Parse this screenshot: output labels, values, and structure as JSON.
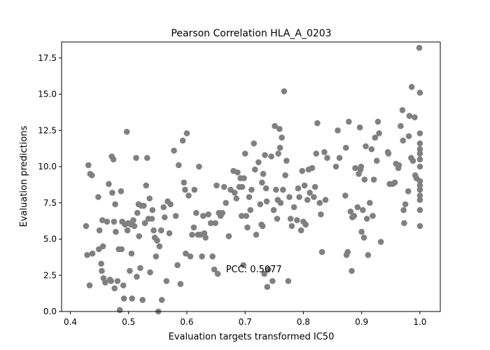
{
  "chart_data": {
    "type": "scatter",
    "title": "Pearson Correlation HLA_A_0203",
    "xlabel": "Evaluation targets transformed IC50",
    "ylabel": "Evaluation predictions",
    "xlim": [
      0.385,
      1.035
    ],
    "ylim": [
      0,
      18.6
    ],
    "xticks": [
      "0.4",
      "0.5",
      "0.6",
      "0.7",
      "0.8",
      "0.9",
      "1.0"
    ],
    "yticks": [
      "0.0",
      "2.5",
      "5.0",
      "7.5",
      "10.0",
      "12.5",
      "15.0",
      "17.5"
    ],
    "grid": false,
    "marker_color": "#808080",
    "annotation": {
      "text": "PCC: 0.5077",
      "x": 0.667,
      "y": 2.7
    },
    "points": [
      [
        0.427,
        5.9
      ],
      [
        0.429,
        3.9
      ],
      [
        0.431,
        10.1
      ],
      [
        0.433,
        1.8
      ],
      [
        0.434,
        9.5
      ],
      [
        0.437,
        9.4
      ],
      [
        0.438,
        4.0
      ],
      [
        0.448,
        7.9
      ],
      [
        0.449,
        4.3
      ],
      [
        0.45,
        5.6
      ],
      [
        0.453,
        3.3
      ],
      [
        0.454,
        2.8
      ],
      [
        0.455,
        6.3
      ],
      [
        0.456,
        4.5
      ],
      [
        0.457,
        2.3
      ],
      [
        0.46,
        2.0
      ],
      [
        0.463,
        6.2
      ],
      [
        0.466,
        8.8
      ],
      [
        0.468,
        2.2
      ],
      [
        0.47,
        2.1
      ],
      [
        0.471,
        10.7
      ],
      [
        0.472,
        8.2
      ],
      [
        0.474,
        10.5
      ],
      [
        0.475,
        6.2
      ],
      [
        0.476,
        1.6
      ],
      [
        0.477,
        7.4
      ],
      [
        0.478,
        5.5
      ],
      [
        0.481,
        2.1
      ],
      [
        0.483,
        4.3
      ],
      [
        0.485,
        0.1
      ],
      [
        0.487,
        8.3
      ],
      [
        0.488,
        4.3
      ],
      [
        0.489,
        6.2
      ],
      [
        0.491,
        1.8
      ],
      [
        0.492,
        0.9
      ],
      [
        0.494,
        6.0
      ],
      [
        0.497,
        12.4
      ],
      [
        0.498,
        5.6
      ],
      [
        0.499,
        6.1
      ],
      [
        0.502,
        2.8
      ],
      [
        0.504,
        6.0
      ],
      [
        0.505,
        4.0
      ],
      [
        0.506,
        0.9
      ],
      [
        0.508,
        6.3
      ],
      [
        0.51,
        5.9
      ],
      [
        0.513,
        10.6
      ],
      [
        0.514,
        2.4
      ],
      [
        0.515,
        6.8
      ],
      [
        0.517,
        7.4
      ],
      [
        0.518,
        5.2
      ],
      [
        0.52,
        3.0
      ],
      [
        0.522,
        7.3
      ],
      [
        0.524,
        0.8
      ],
      [
        0.526,
        7.3
      ],
      [
        0.528,
        6.1
      ],
      [
        0.53,
        8.7
      ],
      [
        0.532,
        10.6
      ],
      [
        0.534,
        6.4
      ],
      [
        0.536,
        7.8
      ],
      [
        0.537,
        2.7
      ],
      [
        0.54,
        6.4
      ],
      [
        0.541,
        7.0
      ],
      [
        0.543,
        5.6
      ],
      [
        0.545,
        5.1
      ],
      [
        0.547,
        3.8
      ],
      [
        0.549,
        4.9
      ],
      [
        0.551,
        0.0
      ],
      [
        0.553,
        4.5
      ],
      [
        0.556,
        5.6
      ],
      [
        0.557,
        0.8
      ],
      [
        0.56,
        7.2
      ],
      [
        0.562,
        6.5
      ],
      [
        0.565,
        2.1
      ],
      [
        0.567,
        7.6
      ],
      [
        0.57,
        5.4
      ],
      [
        0.572,
        7.4
      ],
      [
        0.578,
        11.1
      ],
      [
        0.581,
        6.6
      ],
      [
        0.584,
        3.2
      ],
      [
        0.586,
        10.1
      ],
      [
        0.589,
        1.9
      ],
      [
        0.593,
        11.8
      ],
      [
        0.595,
        8.9
      ],
      [
        0.597,
        8.4
      ],
      [
        0.598,
        4.0
      ],
      [
        0.6,
        12.3
      ],
      [
        0.603,
        8.0
      ],
      [
        0.606,
        3.8
      ],
      [
        0.609,
        5.3
      ],
      [
        0.612,
        5.8
      ],
      [
        0.613,
        8.4
      ],
      [
        0.616,
        6.8
      ],
      [
        0.619,
        5.3
      ],
      [
        0.621,
        10.0
      ],
      [
        0.623,
        5.3
      ],
      [
        0.626,
        3.8
      ],
      [
        0.628,
        6.6
      ],
      [
        0.63,
        5.4
      ],
      [
        0.632,
        5.1
      ],
      [
        0.637,
        6.7
      ],
      [
        0.641,
        6.1
      ],
      [
        0.644,
        3.8
      ],
      [
        0.647,
        2.9
      ],
      [
        0.649,
        6.1
      ],
      [
        0.651,
        8.7
      ],
      [
        0.653,
        2.6
      ],
      [
        0.655,
        6.8
      ],
      [
        0.658,
        6.6
      ],
      [
        0.661,
        6.8
      ],
      [
        0.664,
        8.6
      ],
      [
        0.667,
        7.5
      ],
      [
        0.672,
        5.2
      ],
      [
        0.675,
        8.4
      ],
      [
        0.68,
        9.7
      ],
      [
        0.682,
        8.2
      ],
      [
        0.685,
        7.8
      ],
      [
        0.687,
        9.6
      ],
      [
        0.69,
        8.6
      ],
      [
        0.692,
        9.2
      ],
      [
        0.694,
        6.6
      ],
      [
        0.695,
        8.6
      ],
      [
        0.697,
        3.2
      ],
      [
        0.698,
        9.2
      ],
      [
        0.7,
        10.9
      ],
      [
        0.702,
        6.6
      ],
      [
        0.704,
        5.8
      ],
      [
        0.707,
        7.9
      ],
      [
        0.709,
        7.0
      ],
      [
        0.711,
        8.4
      ],
      [
        0.715,
        11.6
      ],
      [
        0.717,
        9.8
      ],
      [
        0.719,
        5.3
      ],
      [
        0.723,
        10.3
      ],
      [
        0.726,
        7.4
      ],
      [
        0.728,
        6.0
      ],
      [
        0.729,
        8.9
      ],
      [
        0.73,
        5.9
      ],
      [
        0.731,
        9.5
      ],
      [
        0.733,
        2.6
      ],
      [
        0.734,
        10.8
      ],
      [
        0.736,
        8.5
      ],
      [
        0.737,
        7.6
      ],
      [
        0.738,
        1.7
      ],
      [
        0.74,
        2.9
      ],
      [
        0.745,
        10.7
      ],
      [
        0.747,
        2.1
      ],
      [
        0.749,
        7.0
      ],
      [
        0.751,
        12.8
      ],
      [
        0.753,
        8.4
      ],
      [
        0.755,
        6.4
      ],
      [
        0.756,
        7.7
      ],
      [
        0.757,
        10.9
      ],
      [
        0.759,
        12.6
      ],
      [
        0.76,
        11.3
      ],
      [
        0.761,
        7.5
      ],
      [
        0.763,
        12.0
      ],
      [
        0.765,
        8.4
      ],
      [
        0.767,
        15.2
      ],
      [
        0.769,
        9.4
      ],
      [
        0.771,
        10.4
      ],
      [
        0.774,
        2.1
      ],
      [
        0.776,
        7.9
      ],
      [
        0.778,
        6.4
      ],
      [
        0.78,
        5.9
      ],
      [
        0.784,
        7.2
      ],
      [
        0.789,
        6.3
      ],
      [
        0.791,
        8.5
      ],
      [
        0.793,
        7.9
      ],
      [
        0.796,
        5.6
      ],
      [
        0.798,
        9.7
      ],
      [
        0.8,
        6.2
      ],
      [
        0.802,
        8.7
      ],
      [
        0.804,
        6.0
      ],
      [
        0.807,
        7.7
      ],
      [
        0.809,
        9.8
      ],
      [
        0.811,
        8.2
      ],
      [
        0.815,
        9.9
      ],
      [
        0.818,
        7.9
      ],
      [
        0.82,
        8.6
      ],
      [
        0.822,
        10.9
      ],
      [
        0.824,
        13.0
      ],
      [
        0.828,
        7.5
      ],
      [
        0.83,
        6.7
      ],
      [
        0.832,
        4.1
      ],
      [
        0.836,
        11.0
      ],
      [
        0.838,
        7.7
      ],
      [
        0.841,
        10.6
      ],
      [
        0.856,
        10.0
      ],
      [
        0.859,
        12.5
      ],
      [
        0.862,
        10.6
      ],
      [
        0.872,
        8.0
      ],
      [
        0.873,
        11.3
      ],
      [
        0.874,
        3.9
      ],
      [
        0.876,
        4.1
      ],
      [
        0.878,
        13.1
      ],
      [
        0.881,
        6.9
      ],
      [
        0.883,
        2.8
      ],
      [
        0.884,
        6.5
      ],
      [
        0.887,
        6.6
      ],
      [
        0.889,
        9.9
      ],
      [
        0.893,
        7.2
      ],
      [
        0.895,
        9.5
      ],
      [
        0.897,
        12.7
      ],
      [
        0.898,
        9.8
      ],
      [
        0.899,
        10.0
      ],
      [
        0.9,
        5.5
      ],
      [
        0.902,
        7.0
      ],
      [
        0.904,
        5.1
      ],
      [
        0.905,
        9.1
      ],
      [
        0.907,
        11.4
      ],
      [
        0.909,
        6.4
      ],
      [
        0.911,
        3.9
      ],
      [
        0.914,
        7.5
      ],
      [
        0.917,
        11.2
      ],
      [
        0.919,
        6.6
      ],
      [
        0.921,
        9.1
      ],
      [
        0.923,
        12.0
      ],
      [
        0.926,
        10.4
      ],
      [
        0.928,
        13.1
      ],
      [
        0.93,
        12.3
      ],
      [
        0.933,
        4.8
      ],
      [
        0.945,
        11.0
      ],
      [
        0.946,
        10.9
      ],
      [
        0.948,
        8.8
      ],
      [
        0.953,
        8.8
      ],
      [
        0.957,
        8.9
      ],
      [
        0.959,
        10.2
      ],
      [
        0.963,
        9.9
      ],
      [
        0.964,
        10.1
      ],
      [
        0.967,
        12.8
      ],
      [
        0.97,
        13.9
      ],
      [
        0.971,
        11.8
      ],
      [
        0.972,
        7.0
      ],
      [
        0.973,
        6.1
      ],
      [
        0.975,
        7.4
      ],
      [
        0.98,
        8.3
      ],
      [
        0.981,
        12.1
      ],
      [
        0.982,
        13.5
      ],
      [
        0.985,
        10.6
      ],
      [
        0.986,
        15.5
      ],
      [
        0.988,
        10.4
      ],
      [
        0.991,
        13.4
      ],
      [
        0.992,
        9.4
      ],
      [
        0.994,
        9.2
      ],
      [
        0.999,
        18.2
      ],
      [
        1.0,
        15.1
      ],
      [
        1.0,
        12.3
      ],
      [
        1.0,
        11.6
      ],
      [
        1.0,
        11.2
      ],
      [
        1.0,
        10.9
      ],
      [
        1.0,
        10.5
      ],
      [
        1.0,
        10.0
      ],
      [
        1.0,
        9.0
      ],
      [
        1.0,
        8.7
      ],
      [
        1.0,
        8.4
      ],
      [
        1.0,
        8.0
      ],
      [
        1.0,
        7.7
      ],
      [
        1.0,
        7.0
      ],
      [
        1.0,
        5.9
      ]
    ]
  }
}
